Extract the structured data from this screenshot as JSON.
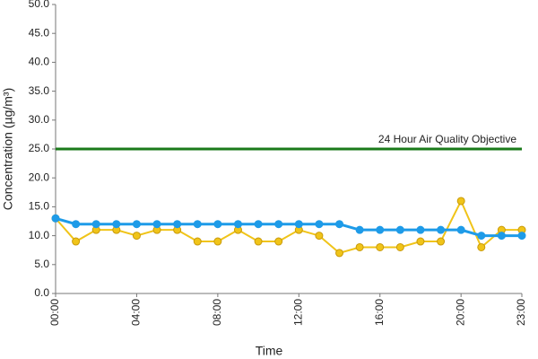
{
  "chart_data": {
    "type": "line",
    "x_label": "Time",
    "y_label": "Concentration (µg/m³)",
    "categories": [
      "00:00",
      null,
      null,
      null,
      "04:00",
      null,
      null,
      null,
      "08:00",
      null,
      null,
      null,
      "12:00",
      null,
      null,
      null,
      "16:00",
      null,
      null,
      null,
      "20:00",
      null,
      null,
      "23:00"
    ],
    "series": [
      {
        "color": "#1e9be8",
        "values": [
          13,
          12,
          12,
          12,
          12,
          12,
          12,
          12,
          12,
          12,
          12,
          12,
          12,
          12,
          12,
          11,
          11,
          11,
          11,
          11,
          11,
          10,
          10,
          10
        ]
      },
      {
        "color": "#f0c419",
        "values": [
          13,
          9,
          11,
          11,
          10,
          11,
          11,
          9,
          9,
          11,
          9,
          9,
          11,
          10,
          7,
          8,
          8,
          8,
          9,
          9,
          16,
          8,
          11,
          11
        ]
      }
    ],
    "reference_line": {
      "value": 25,
      "label": "24 Hour Air Quality Objective",
      "color": "#1a7a1a"
    },
    "ylim": [
      0,
      50
    ],
    "yticks": [
      {
        "value": 0,
        "label": "0.0"
      },
      {
        "value": 5,
        "label": "5.0"
      },
      {
        "value": 10,
        "label": "10.0"
      },
      {
        "value": 15,
        "label": "15.0"
      },
      {
        "value": 20,
        "label": "20.0"
      },
      {
        "value": 25,
        "label": "25.0"
      },
      {
        "value": 30,
        "label": "30.0"
      },
      {
        "value": 35,
        "label": "35.0"
      },
      {
        "value": 40,
        "label": "40.0"
      },
      {
        "value": 45,
        "label": "45.0"
      },
      {
        "value": 50,
        "label": "50.0"
      }
    ]
  }
}
